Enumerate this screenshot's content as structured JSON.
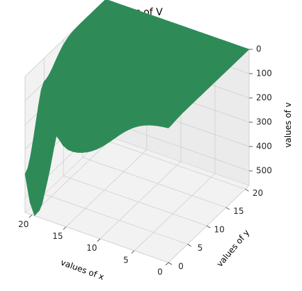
{
  "chart_data": {
    "type": "surface",
    "title": "values of V",
    "xlabel": "values of x",
    "ylabel": "values of y",
    "zlabel": "values of v",
    "x_ticks": [
      0,
      5,
      10,
      15,
      20
    ],
    "y_ticks": [
      0,
      5,
      10,
      15,
      20
    ],
    "z_ticks": [
      0,
      100,
      200,
      300,
      400,
      500
    ],
    "xlim": [
      0,
      21
    ],
    "ylim": [
      0,
      21
    ],
    "zlim": [
      0,
      560
    ],
    "z_inverted": true,
    "grid": true,
    "surface_color": "#2e8b57",
    "surface_points": [
      {
        "x": 0,
        "y": 0,
        "v": 0
      },
      {
        "x": 0,
        "y": 21,
        "v": 0
      },
      {
        "x": 21,
        "y": 21,
        "v": 0
      },
      {
        "x": 21,
        "y": 0,
        "v": 40
      },
      {
        "x": 19.5,
        "y": 0,
        "v": 560
      },
      {
        "x": 15,
        "y": 0,
        "v": 300
      },
      {
        "x": 12,
        "y": 0,
        "v": 120
      }
    ]
  }
}
